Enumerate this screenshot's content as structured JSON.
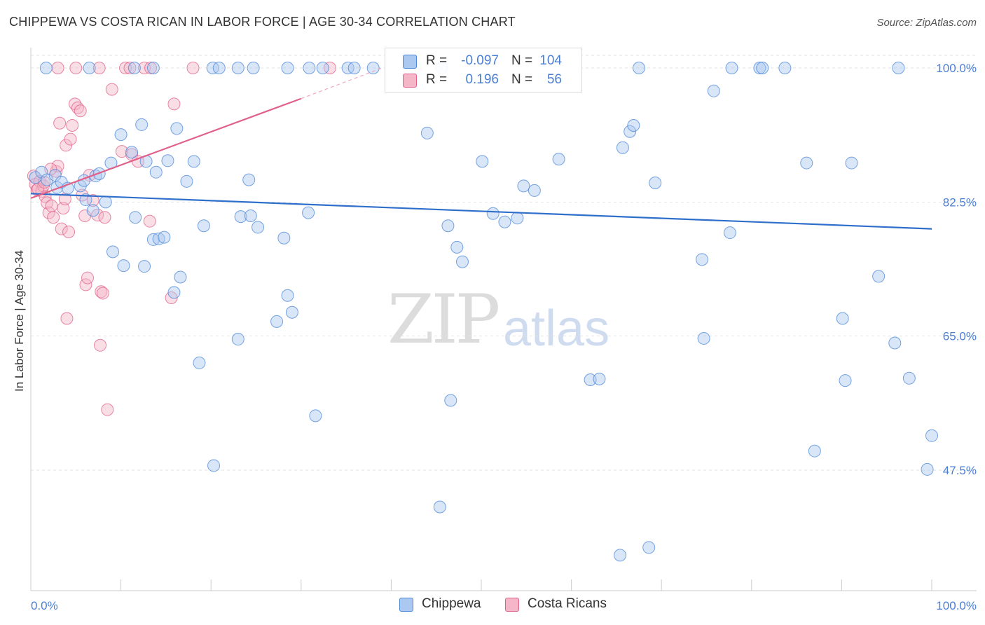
{
  "header": {
    "title": "CHIPPEWA VS COSTA RICAN IN LABOR FORCE | AGE 30-34 CORRELATION CHART",
    "source": "Source: ZipAtlas.com"
  },
  "watermark": {
    "zip": "ZIP",
    "atlas": "atlas"
  },
  "legend": {
    "rows": [
      {
        "r_label": "R =",
        "r_value": "-0.097",
        "n_label": "N =",
        "n_value": "104",
        "color": "#aac8f0"
      },
      {
        "r_label": "R =",
        "r_value": "0.196",
        "n_label": "N =",
        "n_value": "56",
        "color": "#f5b6c8"
      }
    ]
  },
  "bottom_legend": [
    {
      "label": "Chippewa",
      "color": "#aac8f0"
    },
    {
      "label": "Costa Ricans",
      "color": "#f5b6c8"
    }
  ],
  "chart_data": {
    "type": "scatter",
    "title": "CHIPPEWA VS COSTA RICAN IN LABOR FORCE | AGE 30-34 CORRELATION CHART",
    "xlabel": "",
    "ylabel": "In Labor Force | Age 30-34",
    "xlim": [
      0,
      100
    ],
    "ylim": [
      32,
      102
    ],
    "x_tick_labels": [
      "0.0%",
      "100.0%"
    ],
    "y_ticks": [
      47.5,
      65.0,
      82.5,
      100.0
    ],
    "y_tick_labels": [
      "47.5%",
      "65.0%",
      "82.5%",
      "100.0%"
    ],
    "grid": true,
    "series": [
      {
        "name": "Chippewa",
        "color": "#4a86d8",
        "fill": "#aac8f0",
        "trend": {
          "x0": 0,
          "y0": 83.6,
          "x1": 100,
          "y1": 79.0
        },
        "points": [
          [
            0.5,
            85.7
          ],
          [
            1.2,
            86.4
          ],
          [
            1.8,
            85.4
          ],
          [
            2.7,
            86.0
          ],
          [
            2.9,
            84.4
          ],
          [
            3.4,
            85.1
          ],
          [
            4.1,
            84.3
          ],
          [
            5.5,
            84.6
          ],
          [
            5.9,
            85.3
          ],
          [
            6.1,
            82.8
          ],
          [
            6.9,
            81.4
          ],
          [
            7.2,
            85.9
          ],
          [
            7.6,
            86.2
          ],
          [
            8.3,
            82.5
          ],
          [
            8.9,
            87.6
          ],
          [
            9.1,
            76.0
          ],
          [
            10.0,
            91.3
          ],
          [
            10.3,
            74.2
          ],
          [
            11.2,
            89.0
          ],
          [
            11.6,
            80.5
          ],
          [
            12.3,
            92.6
          ],
          [
            12.6,
            74.1
          ],
          [
            12.8,
            87.8
          ],
          [
            13.6,
            77.6
          ],
          [
            13.9,
            86.4
          ],
          [
            14.2,
            77.7
          ],
          [
            14.8,
            77.9
          ],
          [
            15.2,
            87.9
          ],
          [
            15.9,
            70.7
          ],
          [
            16.2,
            92.1
          ],
          [
            16.6,
            72.7
          ],
          [
            17.3,
            85.2
          ],
          [
            18.1,
            87.8
          ],
          [
            18.7,
            61.5
          ],
          [
            19.2,
            79.4
          ],
          [
            20.3,
            48.1
          ],
          [
            23.0,
            64.6
          ],
          [
            23.3,
            80.6
          ],
          [
            24.2,
            85.4
          ],
          [
            24.4,
            80.7
          ],
          [
            25.2,
            79.2
          ],
          [
            27.3,
            66.9
          ],
          [
            28.1,
            77.8
          ],
          [
            28.5,
            70.3
          ],
          [
            29.0,
            68.1
          ],
          [
            30.8,
            81.1
          ],
          [
            31.6,
            54.6
          ],
          [
            45.4,
            42.7
          ],
          [
            44.0,
            91.5
          ],
          [
            46.3,
            79.4
          ],
          [
            46.6,
            56.6
          ],
          [
            47.3,
            76.6
          ],
          [
            47.9,
            74.7
          ],
          [
            50.1,
            87.8
          ],
          [
            51.3,
            81.0
          ],
          [
            52.6,
            79.9
          ],
          [
            54.0,
            80.4
          ],
          [
            54.7,
            84.6
          ],
          [
            55.9,
            84.0
          ],
          [
            58.6,
            88.1
          ],
          [
            62.1,
            59.3
          ],
          [
            63.1,
            59.4
          ],
          [
            65.7,
            89.6
          ],
          [
            66.5,
            91.7
          ],
          [
            66.9,
            92.5
          ],
          [
            68.6,
            37.4
          ],
          [
            69.3,
            85.0
          ],
          [
            74.5,
            75.0
          ],
          [
            74.7,
            64.7
          ],
          [
            75.8,
            97.0
          ],
          [
            77.6,
            78.5
          ],
          [
            86.1,
            87.6
          ],
          [
            87.0,
            50.0
          ],
          [
            90.1,
            67.3
          ],
          [
            90.4,
            59.2
          ],
          [
            91.1,
            87.6
          ],
          [
            94.1,
            72.8
          ],
          [
            95.9,
            64.1
          ],
          [
            97.5,
            59.5
          ],
          [
            99.5,
            47.6
          ],
          [
            100.0,
            52.0
          ],
          [
            65.4,
            36.4
          ],
          [
            1.7,
            100.0
          ],
          [
            6.5,
            100.0
          ],
          [
            11.5,
            100.0
          ],
          [
            13.6,
            100.0
          ],
          [
            20.2,
            100.0
          ],
          [
            20.9,
            100.0
          ],
          [
            23.0,
            100.0
          ],
          [
            24.7,
            100.0
          ],
          [
            28.5,
            100.0
          ],
          [
            30.9,
            100.0
          ],
          [
            32.4,
            100.0
          ],
          [
            35.2,
            100.0
          ],
          [
            35.9,
            100.0
          ],
          [
            38.0,
            100.0
          ],
          [
            42.7,
            100.0
          ],
          [
            45.6,
            100.0
          ],
          [
            67.5,
            100.0
          ],
          [
            77.8,
            100.0
          ],
          [
            80.9,
            100.0
          ],
          [
            81.2,
            100.0
          ],
          [
            83.7,
            100.0
          ],
          [
            96.3,
            100.0
          ]
        ]
      },
      {
        "name": "Costa Ricans",
        "color": "#e0608a",
        "fill": "#f5b6c8",
        "trend": {
          "x0": 0,
          "y0": 83.0,
          "x1": 30,
          "y1": 96.0,
          "dash_x1": 39,
          "dash_y1": 100.0
        },
        "points": [
          [
            0.3,
            85.9
          ],
          [
            0.5,
            84.8
          ],
          [
            0.7,
            84.1
          ],
          [
            1.0,
            85.2
          ],
          [
            1.2,
            83.9
          ],
          [
            1.4,
            84.6
          ],
          [
            1.6,
            83.2
          ],
          [
            1.8,
            82.4
          ],
          [
            2.0,
            81.1
          ],
          [
            2.3,
            82.0
          ],
          [
            2.5,
            80.5
          ],
          [
            2.8,
            86.5
          ],
          [
            3.0,
            87.2
          ],
          [
            3.2,
            92.8
          ],
          [
            3.4,
            79.0
          ],
          [
            3.6,
            81.7
          ],
          [
            3.8,
            82.9
          ],
          [
            3.9,
            89.9
          ],
          [
            4.0,
            67.3
          ],
          [
            4.2,
            78.6
          ],
          [
            4.4,
            90.7
          ],
          [
            4.6,
            92.5
          ],
          [
            4.9,
            95.3
          ],
          [
            5.2,
            94.8
          ],
          [
            5.5,
            94.4
          ],
          [
            5.7,
            83.4
          ],
          [
            6.0,
            80.7
          ],
          [
            6.1,
            71.7
          ],
          [
            6.3,
            72.6
          ],
          [
            6.5,
            86.0
          ],
          [
            6.9,
            82.7
          ],
          [
            7.4,
            80.8
          ],
          [
            7.7,
            63.8
          ],
          [
            7.8,
            70.8
          ],
          [
            8.0,
            70.6
          ],
          [
            8.2,
            80.5
          ],
          [
            8.5,
            55.4
          ],
          [
            9.0,
            97.2
          ],
          [
            10.1,
            89.1
          ],
          [
            11.2,
            88.7
          ],
          [
            11.9,
            87.8
          ],
          [
            13.2,
            80.0
          ],
          [
            15.6,
            70.0
          ],
          [
            15.9,
            95.3
          ],
          [
            3.0,
            100.0
          ],
          [
            5.0,
            100.0
          ],
          [
            7.6,
            100.0
          ],
          [
            10.5,
            100.0
          ],
          [
            11.0,
            100.0
          ],
          [
            12.6,
            100.0
          ],
          [
            13.3,
            100.0
          ],
          [
            18.0,
            100.0
          ],
          [
            33.2,
            100.0
          ],
          [
            0.8,
            84.2
          ],
          [
            2.2,
            86.8
          ],
          [
            1.5,
            85.1
          ]
        ]
      }
    ]
  }
}
